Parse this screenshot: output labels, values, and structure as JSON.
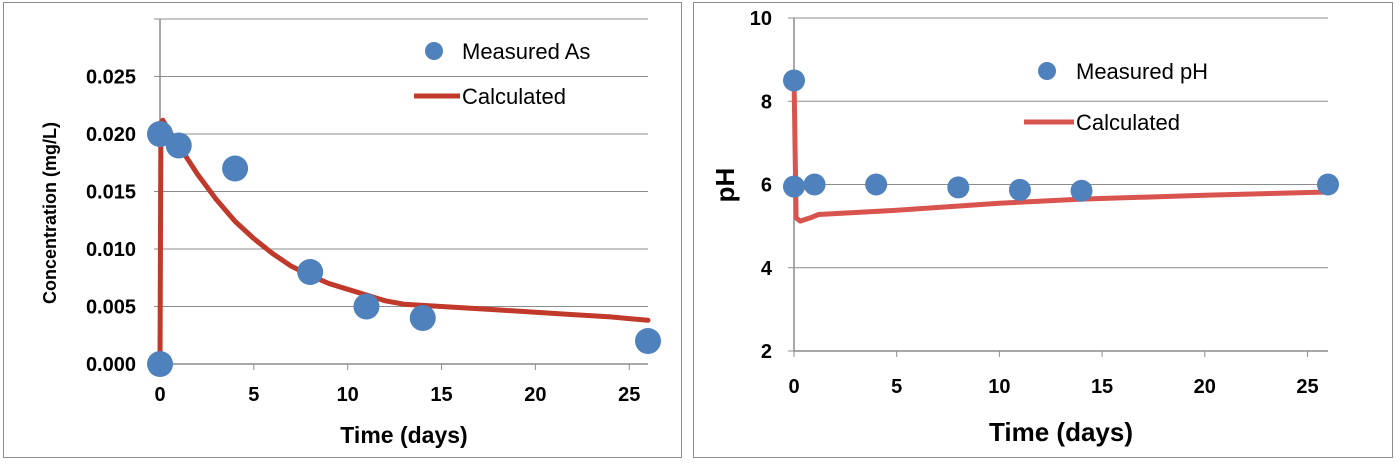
{
  "chart_data": [
    {
      "type": "scatter",
      "xlabel": "Time (days)",
      "ylabel": "Concentration (mg/L)",
      "xlim": [
        0,
        26
      ],
      "ylim": [
        0,
        0.03
      ],
      "xticks": [
        "0",
        "5",
        "10",
        "15",
        "20",
        "25"
      ],
      "yticks": [
        "0.000",
        "0.005",
        "0.010",
        "0.015",
        "0.020",
        "0.025"
      ],
      "grid": "horizontal",
      "legend_position": "top-right",
      "series": [
        {
          "name": "Measured As",
          "kind": "markers",
          "color": "#4f81bd",
          "x": [
            0,
            0,
            1,
            4,
            8,
            11,
            14,
            26
          ],
          "y": [
            0.02,
            0.0,
            0.019,
            0.017,
            0.008,
            0.005,
            0.004,
            0.002
          ]
        },
        {
          "name": "Calculated",
          "kind": "line",
          "color": "#c0392b",
          "x": [
            0,
            0.05,
            0.15,
            0.4,
            1,
            2,
            3,
            4,
            5,
            6,
            7,
            8,
            9,
            10,
            11,
            12,
            13,
            14,
            16,
            18,
            20,
            22,
            24,
            26
          ],
          "y": [
            0.0,
            0.021,
            0.0212,
            0.0205,
            0.019,
            0.0165,
            0.0143,
            0.0124,
            0.0109,
            0.0096,
            0.0085,
            0.0077,
            0.007,
            0.0065,
            0.006,
            0.0055,
            0.0052,
            0.0051,
            0.0049,
            0.0047,
            0.0045,
            0.0043,
            0.0041,
            0.0038
          ]
        }
      ]
    },
    {
      "type": "scatter",
      "xlabel": "Time (days)",
      "ylabel": "pH",
      "xlim": [
        0,
        26
      ],
      "ylim": [
        2,
        10
      ],
      "xticks": [
        "0",
        "5",
        "10",
        "15",
        "20",
        "25"
      ],
      "yticks": [
        "2",
        "4",
        "6",
        "8",
        "10"
      ],
      "grid": "horizontal",
      "legend_position": "top-right",
      "series": [
        {
          "name": "Measured pH",
          "kind": "markers",
          "color": "#4f81bd",
          "x": [
            0,
            0,
            1,
            4,
            8,
            11,
            14,
            26
          ],
          "y": [
            8.5,
            5.95,
            6.0,
            6.0,
            5.93,
            5.87,
            5.85,
            6.0
          ]
        },
        {
          "name": "Calculated",
          "kind": "line",
          "color": "#d9534f",
          "x": [
            0,
            0.1,
            0.3,
            0.8,
            1.2,
            5,
            10,
            14,
            20,
            26
          ],
          "y": [
            8.6,
            5.2,
            5.12,
            5.2,
            5.28,
            5.38,
            5.55,
            5.65,
            5.74,
            5.82
          ]
        }
      ]
    }
  ]
}
